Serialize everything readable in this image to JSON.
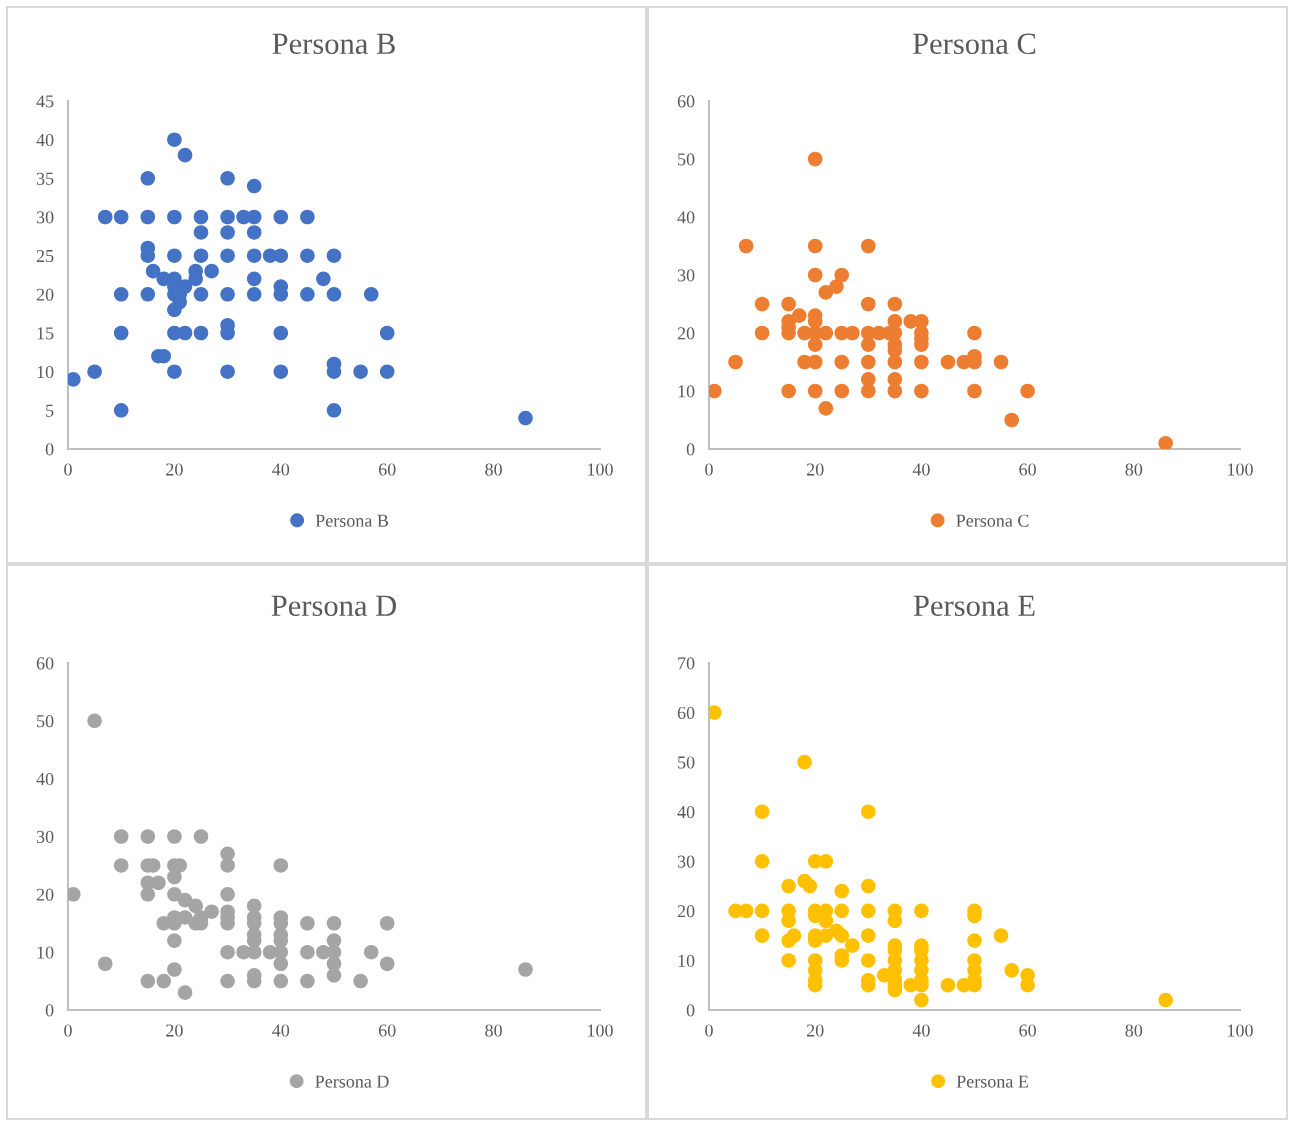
{
  "chart_data": [
    {
      "type": "scatter",
      "title": "Persona B",
      "xlim": [
        0,
        100
      ],
      "xticks": [
        0,
        20,
        40,
        60,
        80,
        100
      ],
      "ylim": [
        0,
        45
      ],
      "yticks": [
        0,
        5,
        10,
        15,
        20,
        25,
        30,
        35,
        40,
        45
      ],
      "grid": false,
      "legend": "bottom",
      "marker": "circle",
      "series": [
        {
          "name": "Persona B",
          "color": "#4472c4",
          "x": [
            1,
            5,
            7,
            10,
            10,
            10,
            10,
            15,
            15,
            15,
            15,
            15,
            16,
            17,
            18,
            18,
            20,
            20,
            20,
            20,
            20,
            20,
            20,
            20,
            20,
            21,
            21,
            22,
            22,
            22,
            24,
            24,
            25,
            25,
            25,
            25,
            25,
            27,
            30,
            30,
            30,
            30,
            30,
            30,
            30,
            30,
            33,
            35,
            35,
            35,
            35,
            35,
            35,
            38,
            40,
            40,
            40,
            40,
            40,
            40,
            45,
            45,
            45,
            48,
            50,
            50,
            50,
            50,
            50,
            55,
            57,
            60,
            60,
            86
          ],
          "values": [
            9,
            10,
            30,
            30,
            20,
            15,
            5,
            35,
            30,
            26,
            25,
            20,
            23,
            12,
            12,
            22,
            40,
            30,
            25,
            22,
            21,
            20,
            18,
            15,
            10,
            19,
            20,
            38,
            21,
            15,
            23,
            22,
            30,
            28,
            25,
            20,
            15,
            23,
            35,
            30,
            28,
            25,
            20,
            16,
            15,
            10,
            30,
            34,
            30,
            28,
            25,
            22,
            20,
            25,
            30,
            25,
            21,
            20,
            15,
            10,
            30,
            25,
            20,
            22,
            25,
            20,
            11,
            10,
            5,
            10,
            20,
            15,
            10,
            4
          ]
        }
      ]
    },
    {
      "type": "scatter",
      "title": "Persona C",
      "xlim": [
        0,
        100
      ],
      "xticks": [
        0,
        20,
        40,
        60,
        80,
        100
      ],
      "ylim": [
        0,
        60
      ],
      "yticks": [
        0,
        10,
        20,
        30,
        40,
        50,
        60
      ],
      "grid": false,
      "legend": "bottom",
      "marker": "circle",
      "series": [
        {
          "name": "Persona C",
          "color": "#ed7d31",
          "x": [
            1,
            5,
            7,
            10,
            10,
            15,
            15,
            15,
            15,
            15,
            17,
            18,
            18,
            20,
            20,
            20,
            20,
            20,
            20,
            20,
            20,
            20,
            22,
            22,
            22,
            24,
            25,
            25,
            25,
            25,
            27,
            30,
            30,
            30,
            30,
            30,
            30,
            30,
            32,
            34,
            35,
            35,
            35,
            35,
            35,
            35,
            35,
            35,
            38,
            40,
            40,
            40,
            40,
            40,
            40,
            45,
            48,
            50,
            50,
            50,
            50,
            55,
            57,
            60,
            86
          ],
          "values": [
            10,
            15,
            35,
            25,
            20,
            25,
            22,
            21,
            20,
            10,
            23,
            20,
            15,
            50,
            35,
            30,
            23,
            22,
            20,
            18,
            15,
            10,
            27,
            20,
            7,
            28,
            30,
            20,
            15,
            10,
            20,
            35,
            25,
            20,
            18,
            15,
            12,
            10,
            20,
            20,
            25,
            22,
            20,
            18,
            17,
            15,
            12,
            10,
            22,
            22,
            20,
            19,
            18,
            15,
            10,
            15,
            15,
            20,
            16,
            15,
            10,
            15,
            5,
            10,
            1
          ]
        }
      ]
    },
    {
      "type": "scatter",
      "title": "Persona D",
      "xlim": [
        0,
        100
      ],
      "xticks": [
        0,
        20,
        40,
        60,
        80,
        100
      ],
      "ylim": [
        0,
        60
      ],
      "yticks": [
        0,
        10,
        20,
        30,
        40,
        50,
        60
      ],
      "grid": false,
      "legend": "bottom",
      "marker": "circle",
      "series": [
        {
          "name": "Persona D",
          "color": "#a5a5a5",
          "x": [
            1,
            5,
            7,
            10,
            10,
            15,
            15,
            15,
            15,
            15,
            16,
            17,
            18,
            18,
            20,
            20,
            20,
            20,
            20,
            20,
            20,
            20,
            21,
            22,
            22,
            22,
            24,
            24,
            25,
            25,
            25,
            27,
            30,
            30,
            30,
            30,
            30,
            30,
            30,
            30,
            33,
            35,
            35,
            35,
            35,
            35,
            35,
            35,
            35,
            38,
            40,
            40,
            40,
            40,
            40,
            40,
            40,
            40,
            45,
            45,
            45,
            48,
            50,
            50,
            50,
            50,
            50,
            55,
            57,
            60,
            60,
            86
          ],
          "values": [
            20,
            50,
            8,
            30,
            25,
            30,
            25,
            22,
            20,
            5,
            25,
            22,
            15,
            5,
            30,
            25,
            23,
            20,
            16,
            15,
            12,
            7,
            25,
            19,
            16,
            3,
            18,
            15,
            30,
            16,
            15,
            17,
            27,
            25,
            20,
            17,
            16,
            15,
            10,
            5,
            10,
            18,
            16,
            15,
            13,
            12,
            10,
            6,
            5,
            10,
            25,
            16,
            15,
            13,
            12,
            10,
            8,
            5,
            15,
            10,
            5,
            10,
            15,
            12,
            10,
            8,
            6,
            5,
            10,
            15,
            8,
            7
          ]
        }
      ]
    },
    {
      "type": "scatter",
      "title": "Persona E",
      "xlim": [
        0,
        100
      ],
      "xticks": [
        0,
        20,
        40,
        60,
        80,
        100
      ],
      "ylim": [
        0,
        70
      ],
      "yticks": [
        0,
        10,
        20,
        30,
        40,
        50,
        60,
        70
      ],
      "grid": false,
      "legend": "bottom",
      "marker": "circle",
      "series": [
        {
          "name": "Persona E",
          "color": "#ffc000",
          "x": [
            1,
            5,
            7,
            10,
            10,
            10,
            10,
            15,
            15,
            15,
            15,
            15,
            16,
            18,
            18,
            19,
            20,
            20,
            20,
            20,
            20,
            20,
            20,
            20,
            20,
            22,
            22,
            22,
            22,
            24,
            25,
            25,
            25,
            25,
            25,
            27,
            30,
            30,
            30,
            30,
            30,
            30,
            30,
            35,
            35,
            35,
            35,
            35,
            35,
            35,
            35,
            35,
            33,
            40,
            40,
            40,
            40,
            40,
            40,
            40,
            40,
            38,
            45,
            48,
            50,
            50,
            50,
            50,
            50,
            50,
            50,
            55,
            57,
            60,
            60,
            86
          ],
          "values": [
            60,
            20,
            20,
            40,
            30,
            20,
            15,
            25,
            20,
            18,
            14,
            10,
            15,
            26,
            50,
            25,
            30,
            20,
            19,
            15,
            14,
            10,
            8,
            6,
            5,
            30,
            20,
            18,
            15,
            16,
            24,
            20,
            15,
            11,
            10,
            13,
            40,
            25,
            20,
            15,
            10,
            6,
            5,
            20,
            18,
            13,
            12,
            10,
            8,
            6,
            5,
            4,
            7,
            20,
            13,
            12,
            10,
            8,
            6,
            5,
            2,
            5,
            5,
            5,
            20,
            19,
            14,
            10,
            8,
            6,
            5,
            15,
            8,
            7,
            5,
            2
          ]
        }
      ]
    }
  ]
}
